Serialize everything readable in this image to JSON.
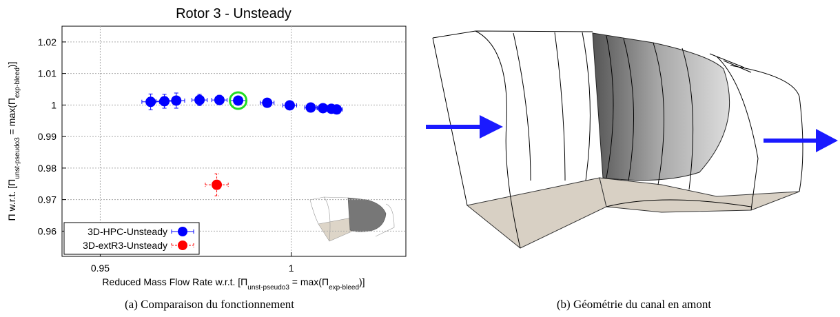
{
  "chart_data": {
    "type": "scatter",
    "title": "Rotor 3 - Unsteady",
    "x_label": [
      "Reduced Mass Flow Rate  w.r.t.  [Π",
      "unst-pseudo3",
      " = max(Π",
      "exp-bleed",
      ")]"
    ],
    "y_label": [
      "Π  w.r.t.  [Π",
      "unst-pseudo3",
      " = max(Π",
      "exp-bleed",
      ")]"
    ],
    "xlim": [
      0.94,
      1.03
    ],
    "ylim": [
      0.952,
      1.025
    ],
    "xticks": [
      0.95,
      1
    ],
    "yticks": [
      0.96,
      0.97,
      0.98,
      0.99,
      1,
      1.01,
      1.02
    ],
    "grid": true,
    "legend": "lower left",
    "highlight_index": 5,
    "highlight_color": "#22dd22",
    "series": [
      {
        "name": "3D-HPC-Unsteady",
        "color": "#0000ff",
        "dashed": false,
        "x": [
          0.9632,
          0.9668,
          0.9699,
          0.976,
          0.9812,
          0.9861,
          0.9937,
          0.9996,
          1.0051,
          1.0083,
          1.0105,
          1.0119
        ],
        "values": [
          1.001,
          1.0012,
          1.0014,
          1.0016,
          1.0016,
          1.0014,
          1.0007,
          0.9999,
          0.9992,
          0.999,
          0.9988,
          0.9986
        ],
        "xerr": [
          0.0023,
          0.0022,
          0.0022,
          0.002,
          0.002,
          0.002,
          0.0018,
          0.0018,
          0.0016,
          0.0015,
          0.0015,
          0.0015
        ],
        "yerr": [
          0.0025,
          0.0022,
          0.0024,
          0.0018,
          0.0015,
          0.0012,
          0.0006,
          0.0004,
          0.0003,
          0.0003,
          0.0003,
          0.0003
        ]
      },
      {
        "name": "3D-extR3-Unsteady",
        "color": "#ff0000",
        "dashed": true,
        "x": [
          0.9805
        ],
        "values": [
          0.9747
        ],
        "xerr": [
          0.003
        ],
        "yerr": [
          0.0035
        ]
      }
    ]
  },
  "captions": {
    "a": "(a) Comparaison du fonctionnement",
    "b": "(b) Géométrie du canal en amont"
  }
}
